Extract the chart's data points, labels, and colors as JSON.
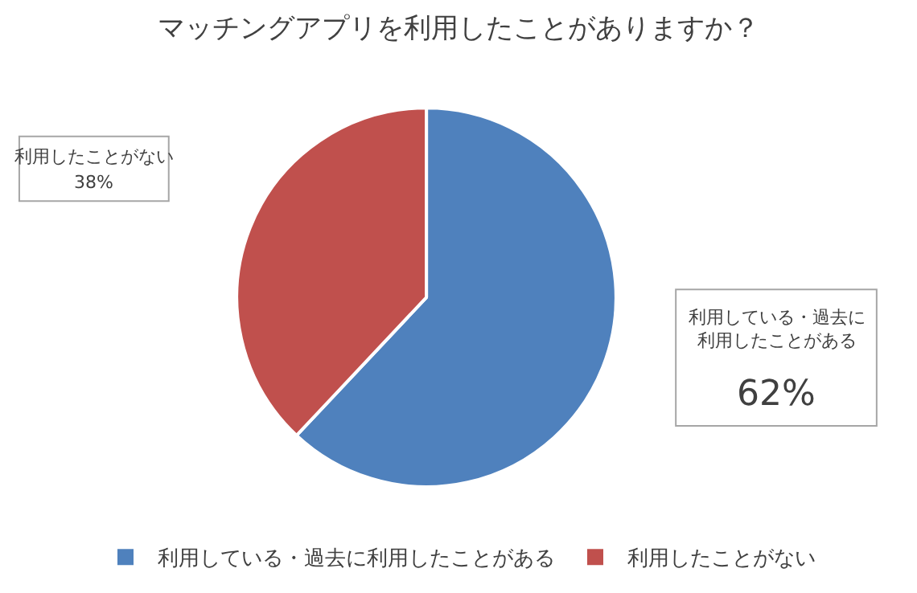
{
  "chart_data": {
    "type": "pie",
    "title": "マッチングアプリを利用したことがありますか？",
    "categories": [
      "利用している・過去に利用したことがある",
      "利用したことがない"
    ],
    "values": [
      62,
      38
    ],
    "colors": [
      "#4f81bd",
      "#c0504d"
    ],
    "value_labels": [
      "62%",
      "38%"
    ],
    "annotations": [
      "利用している・過去に利用したことがある",
      "利用したことがない"
    ],
    "legend": "bottom"
  }
}
